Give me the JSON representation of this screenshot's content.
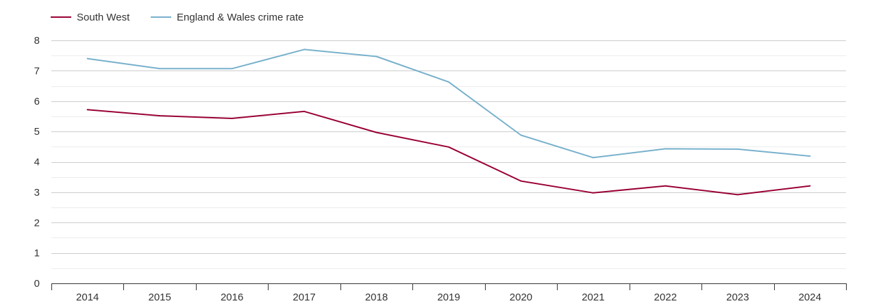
{
  "chart_data": {
    "type": "line",
    "title": "",
    "xlabel": "",
    "ylabel": "",
    "categories": [
      "2014",
      "2015",
      "2016",
      "2017",
      "2018",
      "2019",
      "2020",
      "2021",
      "2022",
      "2023",
      "2024"
    ],
    "ylim": [
      0,
      8
    ],
    "yticks": [
      "0",
      "1",
      "2",
      "3",
      "4",
      "5",
      "6",
      "7",
      "8"
    ],
    "grid": true,
    "legend_position": "top-left",
    "series": [
      {
        "name": "South West",
        "color": "#990033",
        "values": [
          5.72,
          5.52,
          5.43,
          5.66,
          4.97,
          4.49,
          3.37,
          2.98,
          3.21,
          2.92,
          3.21
        ]
      },
      {
        "name": "England & Wales crime rate",
        "color": "#77b0cc",
        "values": [
          7.4,
          7.07,
          7.07,
          7.7,
          7.47,
          6.63,
          4.88,
          4.14,
          4.43,
          4.42,
          4.19
        ]
      }
    ]
  }
}
